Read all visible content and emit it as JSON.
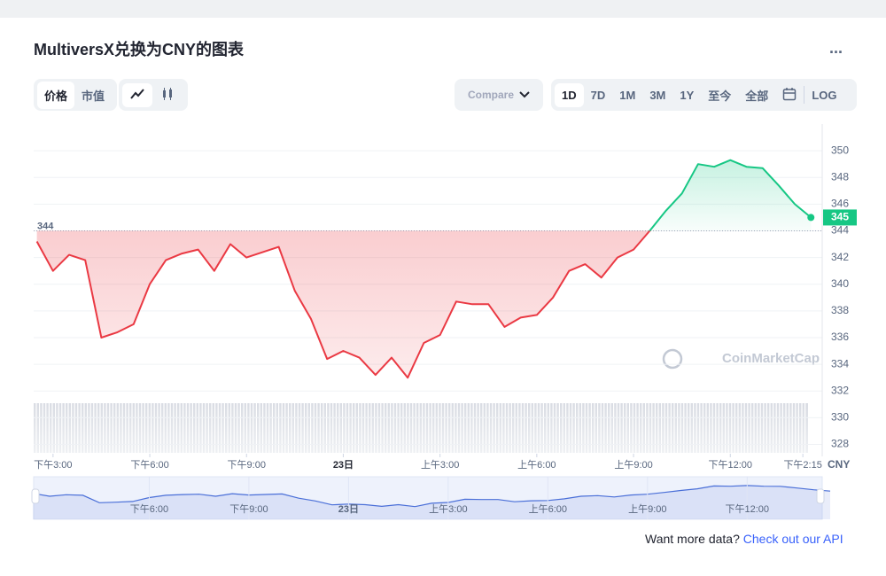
{
  "header": {
    "title": "MultiversX兑换为CNY的图表",
    "menu": "..."
  },
  "tabs": [
    "价格",
    "市值"
  ],
  "compare": "Compare",
  "ranges": [
    "1D",
    "7D",
    "1M",
    "3M",
    "1Y",
    "至今",
    "全部"
  ],
  "log": "LOG",
  "watermark": "CoinMarketCap",
  "footer": {
    "text": "Want more data?",
    "link": "Check out our API"
  },
  "chart_data": {
    "type": "line",
    "x": [
      -0.5,
      0,
      0.5,
      1,
      1.5,
      2,
      2.5,
      3,
      3.5,
      4,
      4.5,
      5,
      5.5,
      6,
      6.5,
      7,
      7.5,
      8,
      8.5,
      9,
      9.5,
      10,
      10.5,
      11,
      11.5,
      12,
      12.5,
      13,
      13.5,
      14,
      14.5,
      15,
      15.5,
      16,
      16.5,
      17,
      17.5,
      18,
      18.5,
      19,
      19.5,
      20,
      20.5,
      21,
      21.5,
      22,
      22.5,
      23,
      23.5
    ],
    "series": [
      {
        "up_color": "#16c784",
        "down_color": "#ea3943",
        "values": [
          343.2,
          341.0,
          342.2,
          341.8,
          336.0,
          336.4,
          337.0,
          340.0,
          341.8,
          342.3,
          342.6,
          341.0,
          343.0,
          342.0,
          342.4,
          342.8,
          339.5,
          337.4,
          334.4,
          335.0,
          334.5,
          333.2,
          334.5,
          333.0,
          335.6,
          336.2,
          338.7,
          338.5,
          338.5,
          336.8,
          337.5,
          337.7,
          339.0,
          341.0,
          341.5,
          340.5,
          342.0,
          342.6,
          344.0,
          345.5,
          346.8,
          349.0,
          348.8,
          349.3,
          348.8,
          348.7,
          347.4,
          346.0,
          345.0
        ]
      }
    ],
    "baseline": 344,
    "xlim": [
      -0.6,
      23.85
    ],
    "xticks": [
      {
        "value": 0,
        "label": "下午3:00"
      },
      {
        "value": 3,
        "label": "下午6:00"
      },
      {
        "value": 6,
        "label": "下午9:00"
      },
      {
        "value": 9,
        "label": "23日"
      },
      {
        "value": 12,
        "label": "上午3:00"
      },
      {
        "value": 15,
        "label": "上午6:00"
      },
      {
        "value": 18,
        "label": "上午9:00"
      },
      {
        "value": 21,
        "label": "下午12:00"
      },
      {
        "value": 23.25,
        "label": "下午2:15"
      }
    ],
    "ylim": [
      327.3,
      352
    ],
    "yticks": [
      328,
      330,
      332,
      334,
      336,
      338,
      340,
      342,
      344,
      346,
      348,
      350
    ],
    "y_unit": "CNY",
    "grid": true,
    "navigator": {
      "color": "#4a6fd8",
      "xlim": [
        -0.48,
        23.26
      ],
      "xticks": [
        {
          "value": 3,
          "label": "下午6:00"
        },
        {
          "value": 6,
          "label": "下午9:00"
        },
        {
          "value": 9,
          "label": "23日"
        },
        {
          "value": 12,
          "label": "上午3:00"
        },
        {
          "value": 15,
          "label": "上午6:00"
        },
        {
          "value": 18,
          "label": "上午9:00"
        },
        {
          "value": 21,
          "label": "下午12:00"
        }
      ]
    }
  }
}
